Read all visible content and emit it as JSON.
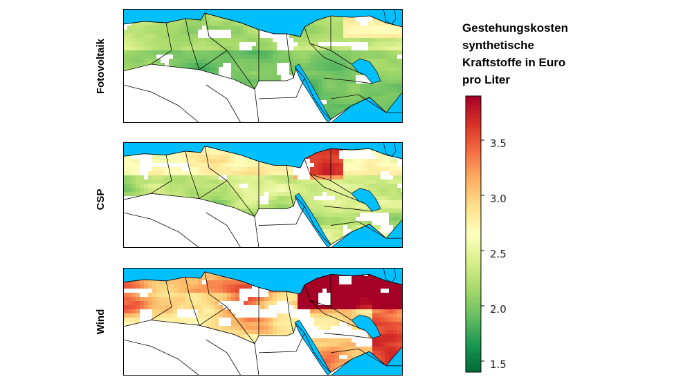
{
  "panels": [
    {
      "label": "Fotovoltaik",
      "scheme": "pv"
    },
    {
      "label": "CSP",
      "scheme": "csp"
    },
    {
      "label": "Wind",
      "scheme": "wind"
    }
  ],
  "legend": {
    "title_lines": [
      "Gestehungskosten",
      "synthetische",
      "Kraftstoffe in Euro",
      "pro Liter"
    ],
    "ticks": [
      "3.5",
      "3.0",
      "2.5",
      "2.0",
      "1.5"
    ],
    "tick_values": [
      3.5,
      3.0,
      2.5,
      2.0,
      1.5
    ],
    "range": [
      1.4,
      3.9
    ],
    "colormap": "RdYlGn_r",
    "colors": [
      "#006837",
      "#1a9850",
      "#66bd63",
      "#a6d96a",
      "#d9ef8b",
      "#ffffbf",
      "#fee08b",
      "#fdae61",
      "#f46d43",
      "#d73027",
      "#a50026"
    ]
  },
  "map_colors": {
    "sea": "#00bfff",
    "land_outside": "#ffffff",
    "borders": "#000000"
  }
}
